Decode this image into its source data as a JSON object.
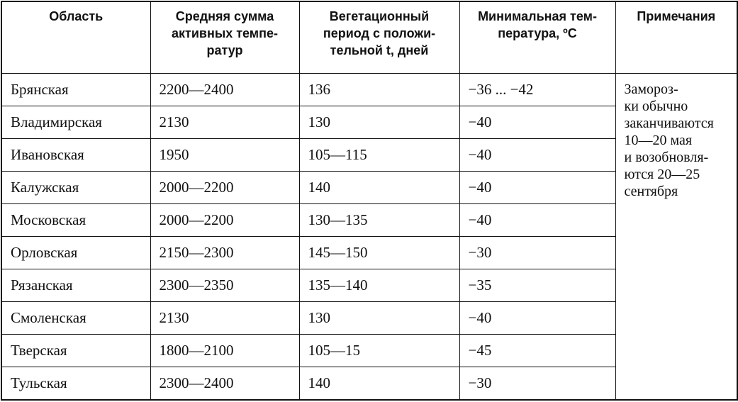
{
  "table": {
    "header": [
      [
        "Область"
      ],
      [
        "Средняя сумма",
        "активных темпе-",
        "ратур"
      ],
      [
        "Вегетационный",
        "период с положи-",
        "тельной t, дней"
      ],
      [
        "Минимальная тем-",
        "пература, ºС"
      ],
      [
        "Примечания"
      ]
    ],
    "rows": [
      [
        "Брянская",
        "2200—2400",
        "136",
        "−36 ... −42"
      ],
      [
        "Владимирская",
        "2130",
        "130",
        "−40"
      ],
      [
        "Ивановская",
        "1950",
        "105—115",
        "−40"
      ],
      [
        "Калужская",
        "2000—2200",
        "140",
        "−40"
      ],
      [
        "Московская",
        "2000—2200",
        "130—135",
        "−40"
      ],
      [
        "Орловская",
        "2150—2300",
        "145—150",
        "−30"
      ],
      [
        "Рязанская",
        "2300—2350",
        "135—140",
        "−35"
      ],
      [
        "Смоленская",
        "2130",
        "130",
        "−40"
      ],
      [
        "Тверская",
        "1800—2100",
        "105—15",
        "−45"
      ],
      [
        "Тульская",
        "2300—2400",
        "140",
        "−30"
      ]
    ],
    "note": [
      "Замороз-",
      "ки обычно",
      "заканчиваются",
      "10—20 мая",
      "и возобновля-",
      "ются 20—25",
      "сентября"
    ]
  }
}
